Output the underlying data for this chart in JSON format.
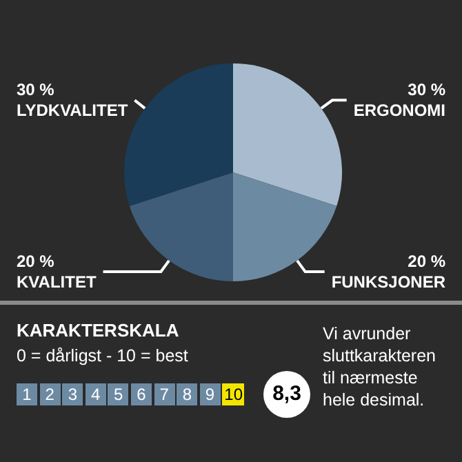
{
  "chart_data": {
    "type": "pie",
    "categories": [
      "ERGONOMI",
      "FUNKSJONER",
      "KVALITET",
      "LYDKVALITET"
    ],
    "values": [
      30,
      20,
      20,
      30
    ],
    "value_labels": [
      "30 %",
      "20 %",
      "20 %",
      "30 %"
    ],
    "colors": [
      "#a9bccf",
      "#6d8aa3",
      "#3f5d78",
      "#1a3c58"
    ],
    "legend": false,
    "annotations": [
      "KARAKTERSKALA",
      "0 = dårligst - 10 = best",
      "1",
      "2",
      "3",
      "4",
      "5",
      "6",
      "7",
      "8",
      "9",
      "10",
      "8,3",
      "Vi avrunder sluttkarakteren til nærmeste hele desimal."
    ]
  }
}
